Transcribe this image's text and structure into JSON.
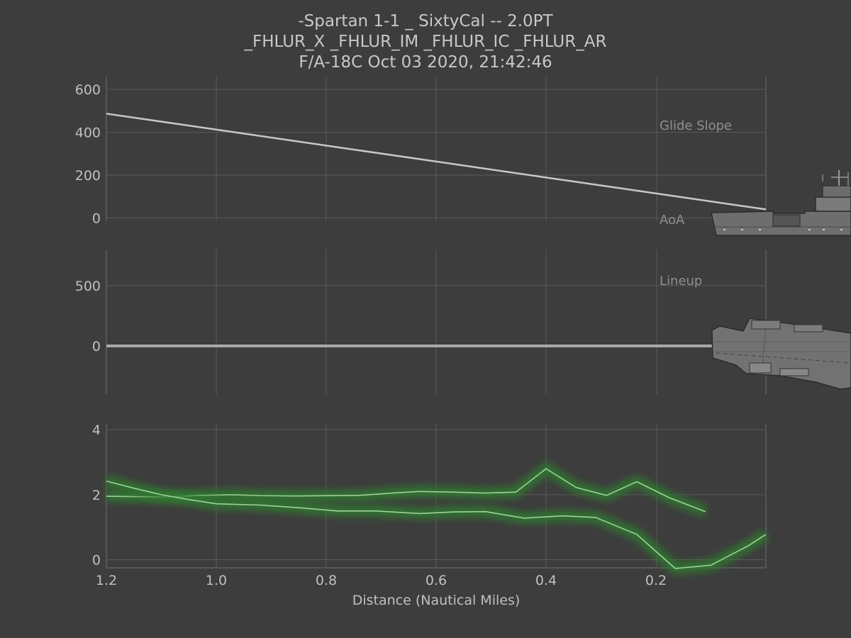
{
  "title_lines": [
    "-Spartan 1-1 _ SixtyCal -- 2.0PT",
    "_FHLUR_X _FHLUR_IM _FHLUR_IC _FHLUR_AR",
    "F/A-18C Oct 03 2020, 21:42:46"
  ],
  "chart_data": [
    {
      "type": "line",
      "panel": "top",
      "label": "Glide Slope",
      "secondary_label": "AoA",
      "xlim": [
        1.2,
        0.0
      ],
      "ylim": [
        -15,
        660
      ],
      "yticks": [
        0,
        200,
        400,
        600
      ],
      "ytick_labels": [
        "0",
        "200",
        "400",
        "600"
      ],
      "grid": true,
      "series": [
        {
          "color": "#c8c8c8",
          "x": [
            1.2,
            0.0
          ],
          "y": [
            487,
            40
          ]
        }
      ]
    },
    {
      "type": "line",
      "panel": "middle",
      "label": "Lineup",
      "xlim": [
        1.2,
        0.0
      ],
      "ylim": [
        -400,
        800
      ],
      "yticks": [
        0,
        500
      ],
      "ytick_labels": [
        "0",
        "500"
      ],
      "grid": true,
      "series": [
        {
          "color": "#a8a8a8",
          "x": [
            1.2,
            0.0
          ],
          "y": [
            0,
            0
          ]
        }
      ]
    },
    {
      "type": "line",
      "panel": "bottom",
      "xlabel": "Distance (Nautical Miles)",
      "xlim": [
        1.2,
        0.0
      ],
      "ylim": [
        -0.25,
        4.2
      ],
      "xticks": [
        1.2,
        1.0,
        0.8,
        0.6,
        0.4,
        0.2
      ],
      "xtick_labels": [
        "1.2",
        "1.0",
        "0.8",
        "0.6",
        "0.4",
        "0.2"
      ],
      "yticks": [
        0,
        2,
        4
      ],
      "ytick_labels": [
        "0",
        "2",
        "4"
      ],
      "grid": true,
      "series": [
        {
          "color": "#9fcf9f",
          "x": [
            1.2,
            1.09,
            1.03,
            0.97,
            0.92,
            0.86,
            0.79,
            0.74,
            0.68,
            0.63,
            0.57,
            0.51,
            0.455,
            0.4,
            0.345,
            0.29,
            0.235,
            0.175,
            0.11
          ],
          "y": [
            1.95,
            1.93,
            1.98,
            2.0,
            1.97,
            1.96,
            1.97,
            1.98,
            2.05,
            2.1,
            2.08,
            2.05,
            2.08,
            2.8,
            2.22,
            1.98,
            2.4,
            1.9,
            1.48
          ]
        },
        {
          "color": "#9fcf9f",
          "x": [
            1.2,
            1.15,
            1.1,
            1.05,
            1.0,
            0.92,
            0.85,
            0.78,
            0.71,
            0.63,
            0.57,
            0.51,
            0.44,
            0.37,
            0.31,
            0.235,
            0.165,
            0.1,
            0.03,
            0.0
          ],
          "y": [
            2.42,
            2.2,
            2.0,
            1.85,
            1.72,
            1.68,
            1.6,
            1.5,
            1.5,
            1.42,
            1.47,
            1.48,
            1.28,
            1.35,
            1.3,
            0.78,
            -0.27,
            -0.17,
            0.45,
            0.78
          ]
        }
      ]
    }
  ]
}
